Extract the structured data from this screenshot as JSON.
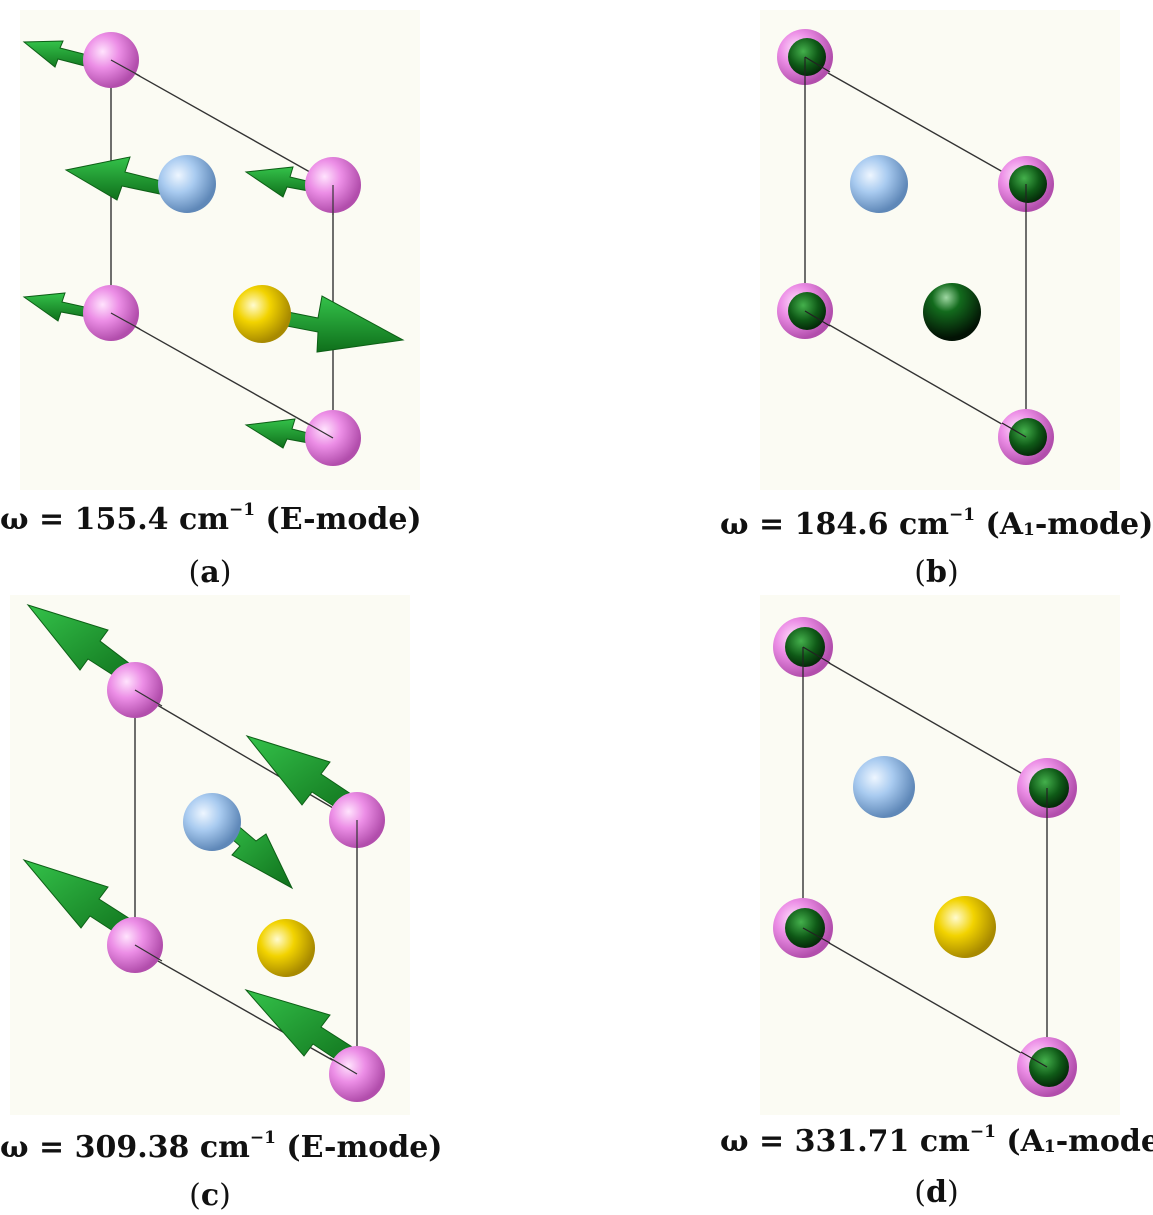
{
  "colors": {
    "atom_pink": "#e87fe3",
    "atom_blue": "#a6c8ef",
    "atom_yellow": "#f0d400",
    "arrow_green": "#1d9a2d",
    "cell_line": "#333333",
    "render_background": "#fbfbf3"
  },
  "panels": [
    {
      "id": "a",
      "caption": {
        "prefix": "ω = 155.4 cm",
        "sup": "−1",
        "mode_prefix": "(E-mode)",
        "mode_sub": "",
        "mode_suffix": ""
      },
      "label": "a"
    },
    {
      "id": "b",
      "caption": {
        "prefix": "ω = 184.6 cm",
        "sup": "−1",
        "mode_prefix": "(A",
        "mode_sub": "1",
        "mode_suffix": "-mode)"
      },
      "label": "b"
    },
    {
      "id": "c",
      "caption": {
        "prefix": "ω = 309.38 cm",
        "sup": "−1",
        "mode_prefix": "(E-mode)",
        "mode_sub": "",
        "mode_suffix": ""
      },
      "label": "c"
    },
    {
      "id": "d",
      "caption": {
        "prefix": "ω = 331.71 cm",
        "sup": "−1",
        "mode_prefix": "(A",
        "mode_sub": "1",
        "mode_suffix": "-mode)"
      },
      "label": "d"
    }
  ]
}
